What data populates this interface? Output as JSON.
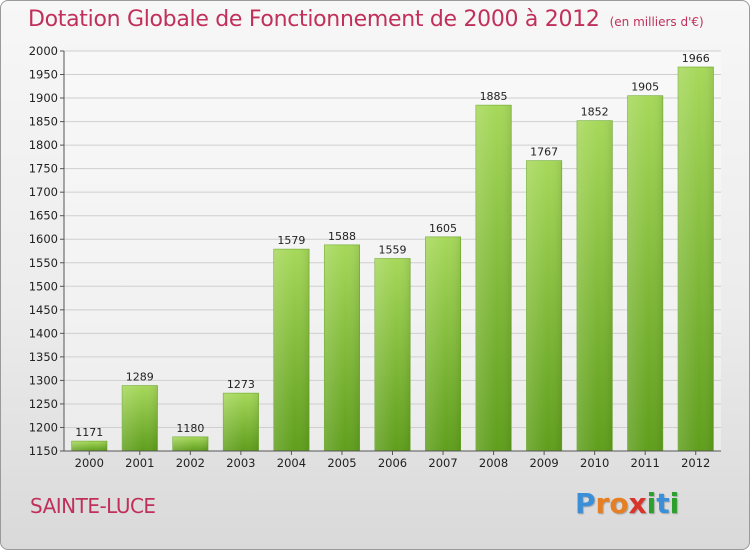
{
  "header": {
    "title": "Dotation Globale de Fonctionnement de 2000 à 2012",
    "subtitle": "(en milliers d'€)"
  },
  "footer": {
    "place": "SAINTE-LUCE",
    "logo": "Proxiti"
  },
  "colors": {
    "title": "#c0305a",
    "bar_light": "#a6d85a",
    "bar_dark": "#5f9e1c",
    "logo_letters": [
      "#3a8fd8",
      "#e67e22",
      "#e67e22",
      "#d9342b",
      "#2ca02c",
      "#3a8fd8",
      "#2ca02c"
    ]
  },
  "chart_data": {
    "type": "bar",
    "categories": [
      "2000",
      "2001",
      "2002",
      "2003",
      "2004",
      "2005",
      "2006",
      "2007",
      "2008",
      "2009",
      "2010",
      "2011",
      "2012"
    ],
    "values": [
      1171,
      1289,
      1180,
      1273,
      1579,
      1588,
      1559,
      1605,
      1885,
      1767,
      1852,
      1905,
      1966
    ],
    "title": "Dotation Globale de Fonctionnement de 2000 à 2012",
    "subtitle": "(en milliers d'€)",
    "xlabel": "",
    "ylabel": "",
    "ylim": [
      1150,
      2000
    ],
    "yticks": [
      1150,
      1200,
      1250,
      1300,
      1350,
      1400,
      1450,
      1500,
      1550,
      1600,
      1650,
      1700,
      1750,
      1800,
      1850,
      1900,
      1950,
      2000
    ],
    "grid": true,
    "legend": "none"
  }
}
